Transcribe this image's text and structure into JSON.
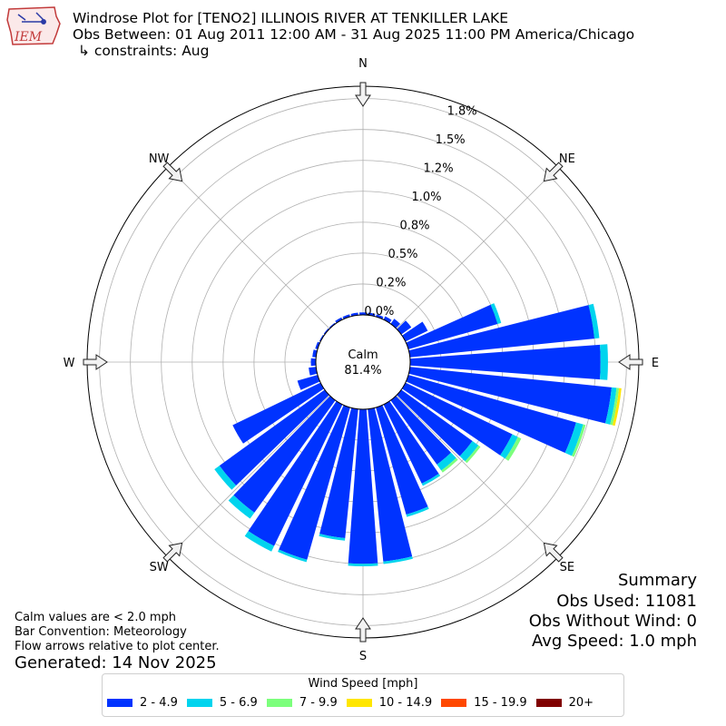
{
  "header": {
    "title_line1": "Windrose Plot for [TENO2] ILLINOIS RIVER  AT TENKILLER LAKE",
    "title_line2": "Obs Between: 01 Aug 2011 12:00 AM - 31 Aug 2025 11:00 PM America/Chicago",
    "title_line3": "↳ constraints: Aug",
    "logo_text": "IEM"
  },
  "notes": {
    "calm_def": "Calm values are < 2.0 mph",
    "convention": "Bar Convention: Meteorology",
    "flow": "Flow arrows relative to plot center.",
    "generated": "Generated: 14 Nov 2025"
  },
  "summary": {
    "title": "Summary",
    "obs_used": "Obs Used: 11081",
    "obs_without_wind": "Obs Without Wind: 0",
    "avg_speed": "Avg Speed: 1.0 mph"
  },
  "legend": {
    "title": "Wind Speed [mph]",
    "bins": [
      {
        "label": "2 - 4.9",
        "color": "#0033ff"
      },
      {
        "label": "5 - 6.9",
        "color": "#00d4ee"
      },
      {
        "label": "7 - 9.9",
        "color": "#7cff7c"
      },
      {
        "label": "10 - 14.9",
        "color": "#ffe600"
      },
      {
        "label": "15 - 19.9",
        "color": "#ff4800"
      },
      {
        "label": "20+",
        "color": "#800000"
      }
    ]
  },
  "chart_data": {
    "type": "windrose",
    "calm_label": "Calm",
    "calm_value": "81.4%",
    "radial_ticks": [
      {
        "value": 0.0,
        "label": "0.0%"
      },
      {
        "value": 0.25,
        "label": "0.2%"
      },
      {
        "value": 0.5,
        "label": "0.5%"
      },
      {
        "value": 0.75,
        "label": "0.8%"
      },
      {
        "value": 1.0,
        "label": "1.0%"
      },
      {
        "value": 1.25,
        "label": "1.2%"
      },
      {
        "value": 1.5,
        "label": "1.5%"
      },
      {
        "value": 1.75,
        "label": "1.8%"
      }
    ],
    "rmax": 1.85,
    "compass": [
      {
        "label": "N",
        "angle": 0
      },
      {
        "label": "NE",
        "angle": 45
      },
      {
        "label": "E",
        "angle": 90
      },
      {
        "label": "SE",
        "angle": 135
      },
      {
        "label": "S",
        "angle": 180
      },
      {
        "label": "SW",
        "angle": 225
      },
      {
        "label": "W",
        "angle": 270
      },
      {
        "label": "NW",
        "angle": 315
      }
    ],
    "direction_step_deg": 10,
    "directions": [
      {
        "dir": 0,
        "values": [
          0.02,
          0,
          0,
          0,
          0,
          0
        ]
      },
      {
        "dir": 10,
        "values": [
          0.02,
          0,
          0,
          0,
          0,
          0
        ]
      },
      {
        "dir": 20,
        "values": [
          0.02,
          0,
          0,
          0,
          0,
          0
        ]
      },
      {
        "dir": 30,
        "values": [
          0.03,
          0,
          0,
          0,
          0,
          0
        ]
      },
      {
        "dir": 40,
        "values": [
          0.05,
          0,
          0,
          0,
          0,
          0
        ]
      },
      {
        "dir": 50,
        "values": [
          0.1,
          0,
          0,
          0,
          0,
          0
        ]
      },
      {
        "dir": 60,
        "values": [
          0.2,
          0,
          0,
          0,
          0,
          0
        ]
      },
      {
        "dir": 70,
        "values": [
          0.75,
          0.03,
          0,
          0,
          0,
          0
        ]
      },
      {
        "dir": 80,
        "values": [
          1.5,
          0.04,
          0,
          0,
          0,
          0
        ]
      },
      {
        "dir": 90,
        "values": [
          1.54,
          0.06,
          0,
          0,
          0,
          0
        ]
      },
      {
        "dir": 100,
        "values": [
          1.64,
          0.04,
          0.02,
          0.02,
          0,
          0
        ]
      },
      {
        "dir": 110,
        "values": [
          1.41,
          0.06,
          0.02,
          0,
          0,
          0
        ]
      },
      {
        "dir": 120,
        "values": [
          0.96,
          0.05,
          0.03,
          0,
          0,
          0
        ]
      },
      {
        "dir": 130,
        "values": [
          0.71,
          0.06,
          0.02,
          0,
          0,
          0
        ]
      },
      {
        "dir": 140,
        "values": [
          0.64,
          0.06,
          0.02,
          0,
          0,
          0
        ]
      },
      {
        "dir": 150,
        "values": [
          0.71,
          0.02,
          0,
          0,
          0,
          0
        ]
      },
      {
        "dir": 160,
        "values": [
          0.9,
          0.02,
          0,
          0,
          0,
          0
        ]
      },
      {
        "dir": 170,
        "values": [
          1.24,
          0.02,
          0,
          0,
          0,
          0
        ]
      },
      {
        "dir": 180,
        "values": [
          1.25,
          0.02,
          0,
          0,
          0,
          0
        ]
      },
      {
        "dir": 190,
        "values": [
          1.05,
          0.02,
          0,
          0,
          0,
          0
        ]
      },
      {
        "dir": 200,
        "values": [
          1.28,
          0.02,
          0,
          0,
          0,
          0
        ]
      },
      {
        "dir": 210,
        "values": [
          1.27,
          0.05,
          0,
          0,
          0,
          0
        ]
      },
      {
        "dir": 220,
        "values": [
          1.12,
          0.06,
          0,
          0,
          0,
          0
        ]
      },
      {
        "dir": 230,
        "values": [
          1.05,
          0.05,
          0,
          0,
          0,
          0
        ]
      },
      {
        "dir": 240,
        "values": [
          0.79,
          0,
          0,
          0,
          0,
          0
        ]
      },
      {
        "dir": 250,
        "values": [
          0.17,
          0,
          0,
          0,
          0,
          0
        ]
      },
      {
        "dir": 260,
        "values": [
          0.06,
          0,
          0,
          0,
          0,
          0
        ]
      },
      {
        "dir": 270,
        "values": [
          0.04,
          0,
          0,
          0,
          0,
          0
        ]
      },
      {
        "dir": 280,
        "values": [
          0.03,
          0,
          0,
          0,
          0,
          0
        ]
      },
      {
        "dir": 290,
        "values": [
          0.02,
          0,
          0,
          0,
          0,
          0
        ]
      },
      {
        "dir": 300,
        "values": [
          0.01,
          0,
          0,
          0,
          0,
          0
        ]
      },
      {
        "dir": 310,
        "values": [
          0.01,
          0,
          0,
          0,
          0,
          0
        ]
      },
      {
        "dir": 320,
        "values": [
          0.01,
          0,
          0,
          0,
          0,
          0
        ]
      },
      {
        "dir": 330,
        "values": [
          0.02,
          0,
          0,
          0,
          0,
          0
        ]
      },
      {
        "dir": 340,
        "values": [
          0.02,
          0,
          0,
          0,
          0,
          0
        ]
      },
      {
        "dir": 350,
        "values": [
          0.02,
          0,
          0,
          0,
          0,
          0
        ]
      }
    ]
  }
}
